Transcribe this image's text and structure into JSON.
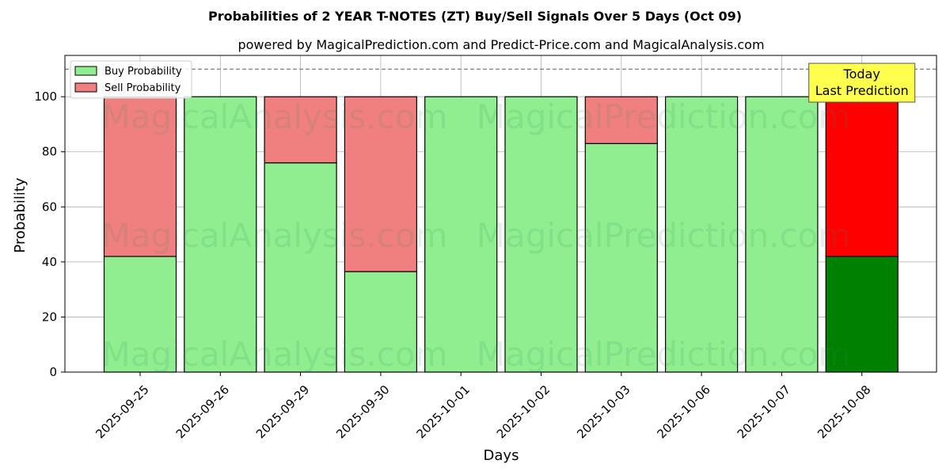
{
  "chart_data": {
    "type": "bar",
    "stacked": true,
    "title": "Probabilities of 2 YEAR T-NOTES (ZT) Buy/Sell Signals Over 5 Days (Oct 09)",
    "subtitle": "powered by MagicalPrediction.com and Predict-Price.com and MagicalAnalysis.com",
    "xlabel": "Days",
    "ylabel": "Probability",
    "ylim": [
      0,
      115
    ],
    "yticks": [
      0,
      20,
      40,
      60,
      80,
      100
    ],
    "grid": true,
    "legend_position": "top-left",
    "reference_line": 110,
    "categories": [
      "2025-09-25",
      "2025-09-26",
      "2025-09-29",
      "2025-09-30",
      "2025-10-01",
      "2025-10-02",
      "2025-10-03",
      "2025-10-06",
      "2025-10-07",
      "2025-10-08"
    ],
    "series": [
      {
        "name": "Buy Probability",
        "color": "#90ee90",
        "values": [
          42,
          100,
          76,
          36.5,
          100,
          100,
          83,
          100,
          100,
          42
        ]
      },
      {
        "name": "Sell Probability",
        "color": "#f08080",
        "values": [
          58,
          0,
          24,
          63.5,
          0,
          0,
          17,
          0,
          0,
          58
        ]
      }
    ],
    "highlight": {
      "index": 9,
      "buy_color": "#008000",
      "sell_color": "#ff0000"
    },
    "annotation": {
      "lines": [
        "Today",
        "Last Prediction"
      ],
      "background": "#ffff4d"
    },
    "watermarks": [
      "MagicalAnalysis.com",
      "MagicalPrediction.com"
    ]
  }
}
